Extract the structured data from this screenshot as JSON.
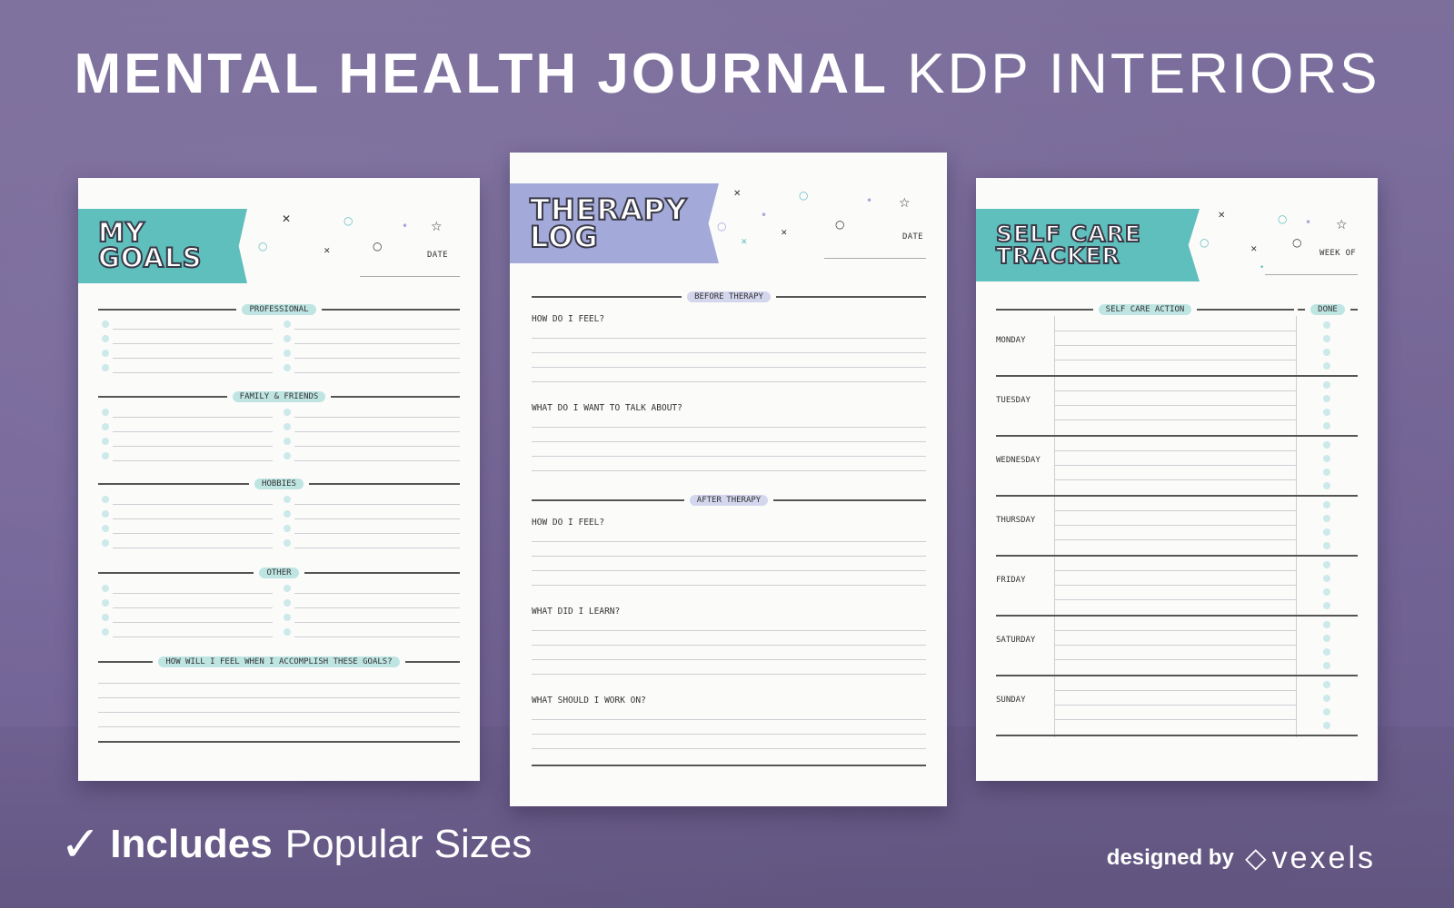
{
  "headline": {
    "bold": "MENTAL HEALTH JOURNAL",
    "light": "KDP INTERIORS"
  },
  "pages": {
    "goals": {
      "title_line1": "MY",
      "title_line2": "GOALS",
      "date_label": "DATE",
      "sections": [
        "PROFESSIONAL",
        "FAMILY & FRIENDS",
        "HOBBIES",
        "OTHER"
      ],
      "closing_question": "HOW WILL I FEEL WHEN I ACCOMPLISH THESE GOALS?"
    },
    "therapy": {
      "title_line1": "THERAPY",
      "title_line2": "LOG",
      "date_label": "DATE",
      "before_heading": "BEFORE THERAPY",
      "after_heading": "AFTER THERAPY",
      "questions": [
        "HOW DO I FEEL?",
        "WHAT DO I WANT TO TALK ABOUT?",
        "HOW DO I FEEL?",
        "WHAT DID I LEARN?",
        "WHAT SHOULD I WORK ON?"
      ]
    },
    "selfcare": {
      "title_line1": "SELF CARE",
      "title_line2": "TRACKER",
      "week_label": "WEEK OF",
      "action_heading": "SELF CARE ACTION",
      "done_heading": "DONE",
      "days": [
        "MONDAY",
        "TUESDAY",
        "WEDNESDAY",
        "THURSDAY",
        "FRIDAY",
        "SATURDAY",
        "SUNDAY"
      ]
    }
  },
  "footer": {
    "check_icon": "checkmark-icon",
    "includes_bold": "Includes",
    "includes_rest": "Popular Sizes",
    "designed_by": "designed by",
    "brand": "vexels",
    "brand_icon": "vexels-logo-icon"
  },
  "colors": {
    "background": "#7b6c9a",
    "teal": "#5ebfbd",
    "lavender": "#a3a9d8"
  }
}
